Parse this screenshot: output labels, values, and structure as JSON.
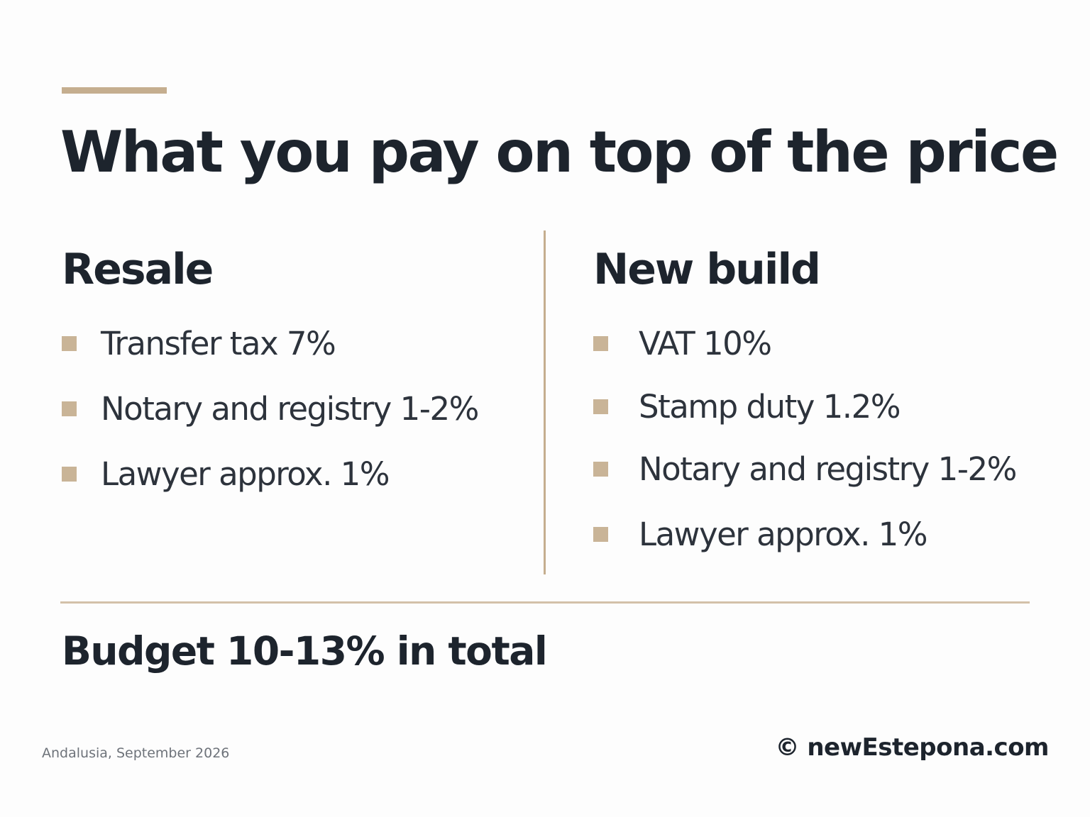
{
  "title": "What you pay on top of the price",
  "resale": {
    "heading": "Resale",
    "items": [
      "Transfer tax  7%",
      "Notary and registry 1-2%",
      "Lawyer approx. 1%"
    ]
  },
  "new_build": {
    "heading": "New build",
    "items": [
      "VAT 10%",
      "Stamp duty  1.2%",
      "Notary and registry 1-2%",
      "Lawyer approx. 1%"
    ]
  },
  "summary": "Budget 10-13% in total",
  "footer": {
    "location_date": "Andalusia, September 2026",
    "copyright": "© newEstepona.com"
  },
  "colors": {
    "accent": "#c5ae8f",
    "text": "#1d242d",
    "background": "#fdfdfd"
  }
}
